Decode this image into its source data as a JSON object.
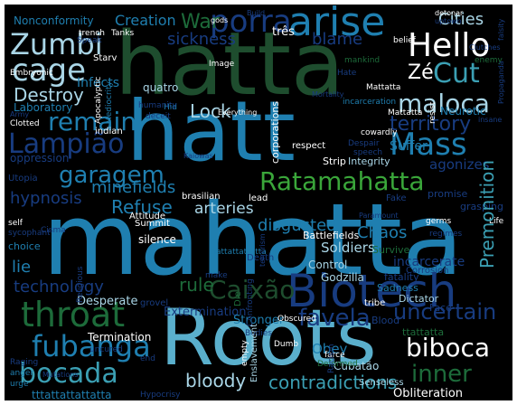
{
  "cloud": {
    "background": "#000000",
    "palette": {
      "blue": "#1f7fb0",
      "navy": "#183c80",
      "green": "#1d6b3a",
      "dkgreen": "#1e4d2e",
      "sky": "#5aafcc",
      "white": "#ffffff",
      "pale": "#a9d5e6",
      "teal": "#3b9fb3"
    },
    "words": [
      {
        "text": "hatta",
        "color": "#1e4d2e"
      },
      {
        "text": "hatt",
        "color": "#1f7fb0"
      },
      {
        "text": "mahatta",
        "color": "#1f7fb0"
      },
      {
        "text": "Roots",
        "color": "#5aafcc"
      },
      {
        "text": "Biotech",
        "color": "#183c80"
      },
      {
        "text": "Hello",
        "color": "#ffffff"
      },
      {
        "text": "arise",
        "color": "#1f7fb0"
      },
      {
        "text": "porra",
        "color": "#183c80"
      },
      {
        "text": "Zumbi",
        "color": "#a9d5e6"
      },
      {
        "text": "cage",
        "color": "#a9d5e6"
      },
      {
        "text": "Ratamahatta",
        "color": "#3aa63a"
      },
      {
        "text": "Mass",
        "color": "#1f7fb0"
      },
      {
        "text": "Lampião",
        "color": "#183c80"
      },
      {
        "text": "remain",
        "color": "#1f7fb0"
      },
      {
        "text": "garagem",
        "color": "#1f7fb0"
      },
      {
        "text": "maloca",
        "color": "#a9d5e6"
      },
      {
        "text": "Cut",
        "color": "#3b9fb3"
      },
      {
        "text": "Zé",
        "color": "#ffffff"
      },
      {
        "text": "territory",
        "color": "#183c80"
      },
      {
        "text": "Destroy",
        "color": "#a9d5e6"
      },
      {
        "text": "throat",
        "color": "#1d6b3a"
      },
      {
        "text": "fubanga",
        "color": "#1f7fb0"
      },
      {
        "text": "bocada",
        "color": "#3b9fb3"
      },
      {
        "text": "biboca",
        "color": "#ffffff"
      },
      {
        "text": "Caixão",
        "color": "#1e4d2e"
      },
      {
        "text": "favela",
        "color": "#183c80"
      },
      {
        "text": "contradictions",
        "color": "#3b9fb3"
      },
      {
        "text": "uncertain",
        "color": "#183c80"
      },
      {
        "text": "inner",
        "color": "#1d6b3a"
      },
      {
        "text": "bloody",
        "color": "#a9d5e6"
      },
      {
        "text": "Obliteration",
        "color": "#ffffff"
      },
      {
        "text": "Premonition",
        "color": "#3b9fb3"
      },
      {
        "text": "Chaos",
        "color": "#1f7fb0"
      },
      {
        "text": "disgusted",
        "color": "#1f7fb0"
      },
      {
        "text": "arteries",
        "color": "#a9d5e6"
      },
      {
        "text": "Refuse",
        "color": "#1f7fb0"
      },
      {
        "text": "hypnosis",
        "color": "#183c80"
      },
      {
        "text": "minefields",
        "color": "#1f7fb0"
      },
      {
        "text": "technology",
        "color": "#183c80"
      },
      {
        "text": "rule",
        "color": "#1d6b3a"
      },
      {
        "text": "lie",
        "color": "#1f7fb0"
      },
      {
        "text": "Lock",
        "color": "#a9d5e6"
      },
      {
        "text": "sickness",
        "color": "#183c80"
      },
      {
        "text": "Creation",
        "color": "#1f7fb0"
      },
      {
        "text": "War",
        "color": "#1d6b3a"
      },
      {
        "text": "blame",
        "color": "#183c80"
      },
      {
        "text": "Cities",
        "color": "#a9d5e6"
      },
      {
        "text": "agonizes",
        "color": "#183c80"
      },
      {
        "text": "Suffer",
        "color": "#1f7fb0"
      },
      {
        "text": "Soldiers",
        "color": "#a9d5e6"
      },
      {
        "text": "incarcerate",
        "color": "#183c80"
      },
      {
        "text": "Desperate",
        "color": "#a9d5e6"
      },
      {
        "text": "Extermination",
        "color": "#183c80"
      },
      {
        "text": "Stronger",
        "color": "#1f7fb0"
      },
      {
        "text": "Termination",
        "color": "#ffffff"
      },
      {
        "text": "silence",
        "color": "#ffffff"
      },
      {
        "text": "ttattatta",
        "color": "#1d6b3a"
      },
      {
        "text": "Cubatão",
        "color": "#a9d5e6"
      },
      {
        "text": "Obey",
        "color": "#1f7fb0"
      },
      {
        "text": "Senseless",
        "color": "#a9d5e6"
      },
      {
        "text": "tttattattattatta",
        "color": "#1f7fb0"
      },
      {
        "text": "Nonconformity",
        "color": "#1f7fb0"
      },
      {
        "text": "Embryonic",
        "color": "#ffffff"
      },
      {
        "text": "indian",
        "color": "#ffffff"
      },
      {
        "text": "Laboratory",
        "color": "#1f7fb0"
      },
      {
        "text": "oppression",
        "color": "#183c80"
      },
      {
        "text": "Utopia",
        "color": "#183c80"
      },
      {
        "text": "corporations",
        "color": "#ffffff"
      },
      {
        "text": "Strip",
        "color": "#ffffff"
      },
      {
        "text": "Integrity",
        "color": "#a9d5e6"
      },
      {
        "text": "respect",
        "color": "#ffffff"
      },
      {
        "text": "três",
        "color": "#ffffff"
      },
      {
        "text": "quatro",
        "color": "#a9d5e6"
      },
      {
        "text": "Infects",
        "color": "#1f7fb0"
      },
      {
        "text": "brasilian",
        "color": "#ffffff"
      },
      {
        "text": "lead",
        "color": "#ffffff"
      },
      {
        "text": "Attitude",
        "color": "#ffffff"
      },
      {
        "text": "Summit",
        "color": "#ffffff"
      },
      {
        "text": "Battlefields",
        "color": "#ffffff"
      },
      {
        "text": "Survive",
        "color": "#1d6b3a"
      },
      {
        "text": "Control",
        "color": "#a9d5e6"
      },
      {
        "text": "Godzilla",
        "color": "#a9d5e6"
      },
      {
        "text": "fatality",
        "color": "#183c80"
      },
      {
        "text": "Sadness",
        "color": "#1f7fb0"
      },
      {
        "text": "Dictator",
        "color": "#a9d5e6"
      },
      {
        "text": "Corrosion",
        "color": "#183c80"
      },
      {
        "text": "Death",
        "color": "#183c80"
      },
      {
        "text": "Blood",
        "color": "#183c80"
      },
      {
        "text": "Face",
        "color": "#183c80"
      },
      {
        "text": "tribe",
        "color": "#ffffff"
      },
      {
        "text": "Life",
        "color": "#ffffff"
      },
      {
        "text": "germs",
        "color": "#ffffff"
      },
      {
        "text": "promise",
        "color": "#183c80"
      },
      {
        "text": "grasping",
        "color": "#183c80"
      },
      {
        "text": "Fake",
        "color": "#183c80"
      },
      {
        "text": "Neurotic",
        "color": "#1f7fb0"
      },
      {
        "text": "Mattatta",
        "color": "#ffffff"
      },
      {
        "text": "resist",
        "color": "#ffffff"
      },
      {
        "text": "belief",
        "color": "#ffffff"
      },
      {
        "text": "detonar",
        "color": "#ffffff"
      },
      {
        "text": "uptown",
        "color": "#183c80"
      },
      {
        "text": "Tanks",
        "color": "#ffffff"
      },
      {
        "text": "Speak",
        "color": "#183c80"
      },
      {
        "text": "trench",
        "color": "#ffffff"
      },
      {
        "text": "Starv",
        "color": "#ffffff"
      },
      {
        "text": "Build",
        "color": "#183c80"
      },
      {
        "text": "gods",
        "color": "#ffffff"
      },
      {
        "text": "mankind",
        "color": "#1d6b3a"
      },
      {
        "text": "Image",
        "color": "#ffffff"
      },
      {
        "text": "incarceration",
        "color": "#1f7fb0"
      },
      {
        "text": "self",
        "color": "#ffffff"
      },
      {
        "text": "sycophant",
        "color": "#183c80"
      },
      {
        "text": "choice",
        "color": "#1f7fb0"
      },
      {
        "text": "Army",
        "color": "#183c80"
      },
      {
        "text": "Clotted",
        "color": "#ffffff"
      },
      {
        "text": "Despair",
        "color": "#183c80"
      },
      {
        "text": "speech",
        "color": "#183c80"
      },
      {
        "text": "cowardly",
        "color": "#ffffff"
      },
      {
        "text": "Everything",
        "color": "#ffffff"
      },
      {
        "text": "deceit",
        "color": "#183c80"
      },
      {
        "text": "Hid",
        "color": "#1f7fb0"
      },
      {
        "text": "humanity",
        "color": "#183c80"
      },
      {
        "text": "make",
        "color": "#183c80"
      },
      {
        "text": "Religious",
        "color": "#183c80"
      },
      {
        "text": "grovel",
        "color": "#183c80"
      },
      {
        "text": "Deformed",
        "color": "#1d6b3a"
      },
      {
        "text": "Enslavement",
        "color": "#a9d5e6"
      },
      {
        "text": "farce",
        "color": "#ffffff"
      },
      {
        "text": "Dumb",
        "color": "#ffffff"
      },
      {
        "text": "Bodies",
        "color": "#183c80"
      },
      {
        "text": "end",
        "color": "#183c80"
      },
      {
        "text": "uncured",
        "color": "#183c80"
      },
      {
        "text": "Raging",
        "color": "#183c80"
      },
      {
        "text": "anger",
        "color": "#1f7fb0"
      },
      {
        "text": "urge",
        "color": "#1f7fb0"
      },
      {
        "text": "Hypocrisy",
        "color": "#183c80"
      },
      {
        "text": "Die",
        "color": "#1d6b3a"
      },
      {
        "text": "Confronting",
        "color": "#183c80"
      },
      {
        "text": "Hate",
        "color": "#183c80"
      },
      {
        "text": "Mattatta",
        "color": "#ffffff"
      },
      {
        "text": "enemy",
        "color": "#1d6b3a"
      },
      {
        "text": "falsity",
        "color": "#183c80"
      },
      {
        "text": "Cisma",
        "color": "#183c80"
      },
      {
        "text": "Propaganda",
        "color": "#183c80"
      },
      {
        "text": "empty",
        "color": "#ffffff"
      },
      {
        "text": "Paramount",
        "color": "#183c80"
      },
      {
        "text": "regimes",
        "color": "#183c80"
      },
      {
        "text": "terrorism",
        "color": "#183c80"
      },
      {
        "text": "Obscured",
        "color": "#ffffff"
      },
      {
        "text": "Tattattattatta",
        "color": "#1f7fb0"
      },
      {
        "text": "Apocalyptic",
        "color": "#ffffff"
      },
      {
        "text": "Mediocrity",
        "color": "#1f7fb0"
      },
      {
        "text": "Mortality",
        "color": "#183c80"
      },
      {
        "text": "Kaiowas",
        "color": "#183c80"
      },
      {
        "text": "insane",
        "color": "#183c80"
      },
      {
        "text": "Clutches",
        "color": "#183c80"
      },
      {
        "text": "Racism",
        "color": "#183c80"
      },
      {
        "text": "Mutations",
        "color": "#183c80"
      }
    ]
  }
}
